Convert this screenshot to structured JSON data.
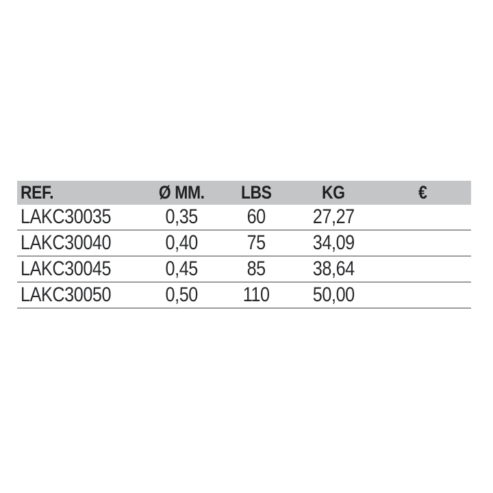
{
  "colors": {
    "page_bg": "#ffffff",
    "header_bg": "#c3c5c7",
    "divider": "#9a9c9e",
    "header_text": "#1f2022",
    "body_text": "#28292b"
  },
  "table": {
    "columns": [
      {
        "key": "ref",
        "label": "REF."
      },
      {
        "key": "diameter",
        "label": "Ø MM."
      },
      {
        "key": "lbs",
        "label": "LBS"
      },
      {
        "key": "kg",
        "label": "KG"
      },
      {
        "key": "euro",
        "label": "€"
      }
    ],
    "rows": [
      {
        "ref": "LAKC30035",
        "diameter": "0,35",
        "lbs": "60",
        "kg": "27,27",
        "euro": ""
      },
      {
        "ref": "LAKC30040",
        "diameter": "0,40",
        "lbs": "75",
        "kg": "34,09",
        "euro": ""
      },
      {
        "ref": "LAKC30045",
        "diameter": "0,45",
        "lbs": "85",
        "kg": "38,64",
        "euro": ""
      },
      {
        "ref": "LAKC30050",
        "diameter": "0,50",
        "lbs": "110",
        "kg": "50,00",
        "euro": ""
      }
    ]
  }
}
